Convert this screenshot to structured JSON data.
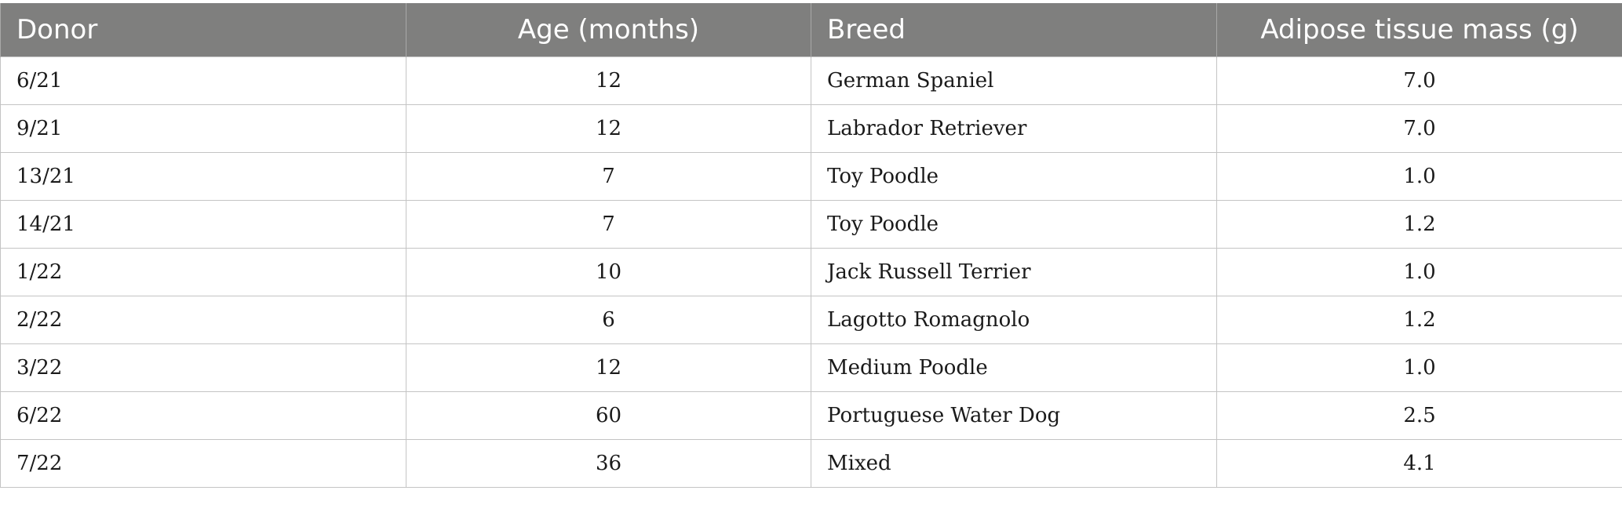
{
  "table": {
    "headers": [
      "Donor",
      "Age (months)",
      "Breed",
      "Adipose tissue mass (g)"
    ],
    "rows": [
      [
        "6/21",
        "12",
        "German Spaniel",
        "7.0"
      ],
      [
        "9/21",
        "12",
        "Labrador Retriever",
        "7.0"
      ],
      [
        "13/21",
        "7",
        "Toy Poodle",
        "1.0"
      ],
      [
        "14/21",
        "7",
        "Toy Poodle",
        "1.2"
      ],
      [
        "1/22",
        "10",
        "Jack Russell Terrier",
        "1.0"
      ],
      [
        "2/22",
        "6",
        "Lagotto Romagnolo",
        "1.2"
      ],
      [
        "3/22",
        "12",
        "Medium Poodle",
        "1.0"
      ],
      [
        "6/22",
        "60",
        "Portuguese Water Dog",
        "2.5"
      ],
      [
        "7/22",
        "36",
        "Mixed",
        "4.1"
      ]
    ]
  },
  "colors": {
    "header_background": "#7f7f7e",
    "header_text": "#ffffff",
    "grid_lines": "#c4c4c4"
  }
}
